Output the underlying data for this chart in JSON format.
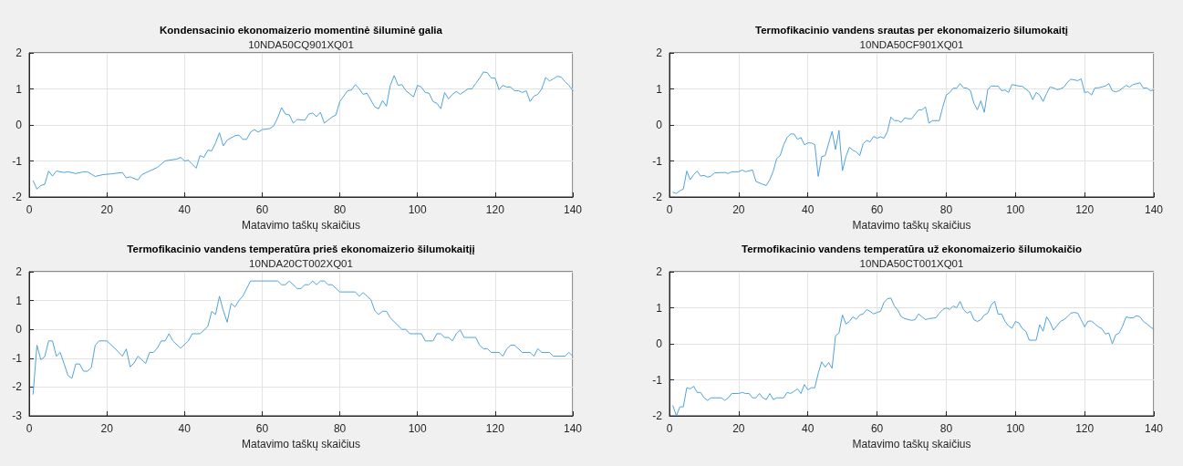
{
  "chart_data": [
    {
      "type": "line",
      "title": "Kondensacinio ekonomaizerio momentinė šiluminė galia",
      "subtitle": "10NDA50CQ901XQ01",
      "xlabel": "Matavimo taškų skaičius",
      "x": [
        1,
        2,
        3,
        4,
        5,
        6,
        7,
        9,
        10,
        12,
        14,
        15,
        17,
        19,
        21,
        24,
        25,
        26,
        28,
        29,
        31,
        33,
        35,
        36,
        38,
        39,
        40,
        41,
        43,
        44,
        45,
        46,
        47,
        48,
        49,
        50,
        51,
        53,
        54,
        55,
        56,
        57,
        58,
        59,
        60,
        62,
        63,
        64,
        65,
        66,
        67,
        68,
        69,
        71,
        72,
        73,
        74,
        75,
        76,
        78,
        79,
        80,
        82,
        83,
        84,
        85,
        86,
        87,
        89,
        90,
        91,
        92,
        93,
        94,
        95,
        96,
        97,
        99,
        100,
        101,
        102,
        103,
        104,
        105,
        106,
        107,
        108,
        109,
        110,
        111,
        113,
        114,
        115,
        116,
        117,
        118,
        119,
        120,
        121,
        122,
        123,
        124,
        125,
        126,
        127,
        128,
        129,
        130,
        131,
        132,
        133,
        134,
        135,
        136,
        137,
        138,
        139,
        140
      ],
      "series": [
        {
          "color": "#4fa3db",
          "values": [
            -1.55,
            -1.78,
            -1.68,
            -1.65,
            -1.28,
            -1.42,
            -1.28,
            -1.32,
            -1.3,
            -1.35,
            -1.3,
            -1.3,
            -1.43,
            -1.38,
            -1.36,
            -1.32,
            -1.47,
            -1.44,
            -1.53,
            -1.38,
            -1.28,
            -1.18,
            -1.0,
            -0.98,
            -0.95,
            -0.9,
            -1.0,
            -0.98,
            -1.2,
            -0.85,
            -0.9,
            -0.7,
            -0.72,
            -0.5,
            -0.22,
            -0.58,
            -0.42,
            -0.3,
            -0.28,
            -0.4,
            -0.4,
            -0.2,
            -0.13,
            -0.2,
            -0.13,
            -0.1,
            -0.02,
            0.2,
            0.48,
            0.3,
            0.28,
            0.05,
            0.15,
            0.13,
            0.3,
            0.33,
            0.23,
            0.35,
            0.05,
            0.22,
            0.28,
            0.65,
            0.95,
            0.97,
            1.12,
            1.0,
            0.85,
            0.88,
            0.5,
            0.45,
            0.68,
            0.52,
            1.1,
            1.37,
            1.1,
            1.12,
            0.95,
            0.78,
            1.1,
            1.05,
            0.9,
            0.88,
            0.65,
            0.6,
            0.45,
            0.9,
            0.72,
            0.85,
            0.93,
            0.85,
            1.0,
            1.0,
            1.15,
            1.3,
            1.47,
            1.45,
            1.3,
            1.3,
            0.98,
            1.1,
            1.05,
            1.05,
            0.95,
            0.95,
            0.9,
            0.95,
            0.65,
            0.8,
            0.85,
            1.0,
            1.32,
            1.22,
            1.28,
            1.35,
            1.33,
            1.2,
            1.1,
            0.95
          ]
        }
      ],
      "xlim": [
        0,
        140
      ],
      "xticks": [
        0,
        20,
        40,
        60,
        80,
        100,
        120,
        140
      ],
      "ylim": [
        -2,
        2
      ],
      "yticks": [
        -2,
        -1,
        0,
        1,
        2
      ],
      "grid": true
    },
    {
      "type": "line",
      "title": "Termofikacinio vandens srautas per ekonomaizerio šilumokaitį",
      "subtitle": "10NDA50CF901XQ01",
      "xlabel": "Matavimo taškų skaičius",
      "x": [
        1,
        2,
        3,
        4,
        5,
        6,
        7,
        8,
        9,
        10,
        11,
        12,
        13,
        16,
        17,
        18,
        20,
        21,
        22,
        24,
        25,
        27,
        28,
        29,
        30,
        31,
        32,
        33,
        34,
        35,
        36,
        37,
        38,
        39,
        40,
        41,
        42,
        43,
        44,
        45,
        47,
        48,
        49,
        50,
        51,
        52,
        53,
        54,
        55,
        56,
        57,
        58,
        59,
        60,
        61,
        62,
        63,
        64,
        65,
        66,
        67,
        68,
        69,
        70,
        72,
        73,
        74,
        75,
        76,
        78,
        79,
        80,
        81,
        82,
        83,
        84,
        85,
        86,
        87,
        88,
        89,
        90,
        91,
        92,
        93,
        95,
        96,
        97,
        98,
        99,
        101,
        102,
        104,
        105,
        106,
        107,
        108,
        109,
        110,
        111,
        112,
        113,
        114,
        115,
        116,
        118,
        119,
        120,
        121,
        122,
        123,
        124,
        126,
        127,
        128,
        129,
        130,
        132,
        133,
        134,
        136,
        137,
        138,
        139,
        140
      ],
      "series": [
        {
          "color": "#4fa3db",
          "values": [
            -1.87,
            -1.9,
            -1.83,
            -1.78,
            -1.28,
            -1.52,
            -1.38,
            -1.28,
            -1.42,
            -1.4,
            -1.45,
            -1.42,
            -1.33,
            -1.32,
            -1.35,
            -1.3,
            -1.3,
            -1.25,
            -1.3,
            -1.25,
            -1.57,
            -1.65,
            -1.68,
            -1.52,
            -1.28,
            -0.93,
            -0.85,
            -0.55,
            -0.35,
            -0.25,
            -0.25,
            -0.4,
            -0.35,
            -0.55,
            -0.5,
            -0.5,
            -0.55,
            -1.43,
            -0.88,
            -0.85,
            -0.18,
            -0.68,
            -0.15,
            -1.27,
            -0.88,
            -0.62,
            -0.7,
            -0.75,
            -0.85,
            -0.52,
            -0.43,
            -0.47,
            -0.32,
            -0.37,
            -0.33,
            -0.37,
            -0.18,
            0.22,
            0.12,
            0.12,
            0.07,
            0.2,
            0.17,
            0.17,
            0.42,
            0.42,
            0.5,
            0.05,
            0.12,
            0.12,
            0.5,
            0.83,
            0.9,
            1.02,
            1.02,
            1.15,
            1.03,
            1.02,
            0.95,
            0.6,
            0.42,
            0.67,
            0.35,
            0.98,
            1.08,
            1.08,
            0.95,
            0.97,
            0.9,
            1.12,
            1.08,
            1.07,
            0.92,
            0.7,
            0.9,
            0.83,
            0.65,
            0.87,
            1.05,
            1.03,
            0.98,
            1.0,
            1.05,
            1.18,
            1.27,
            1.23,
            1.28,
            0.9,
            0.92,
            0.83,
            1.03,
            1.03,
            1.08,
            1.15,
            0.95,
            0.92,
            0.95,
            1.1,
            1.05,
            1.12,
            1.17,
            1.02,
            1.03,
            0.95,
            0.97
          ]
        }
      ],
      "xlim": [
        0,
        140
      ],
      "xticks": [
        0,
        20,
        40,
        60,
        80,
        100,
        120,
        140
      ],
      "ylim": [
        -2,
        2
      ],
      "yticks": [
        -2,
        -1,
        0,
        1,
        2
      ],
      "grid": true
    },
    {
      "type": "line",
      "title": "Termofikacinio vandens temperatūra prieš ekonomaizerio šilumokaitįį",
      "subtitle": "10NDA20CT002XQ01",
      "xlabel": "Matavimo taškų skaičius",
      "x": [
        1,
        2,
        3,
        4,
        5,
        6,
        7,
        8,
        9,
        10,
        11,
        12,
        13,
        14,
        15,
        16,
        17,
        18,
        20,
        22,
        24,
        25,
        26,
        27,
        28,
        30,
        31,
        32,
        33,
        34,
        35,
        36,
        37,
        39,
        41,
        42,
        44,
        46,
        47,
        48,
        49,
        50,
        51,
        52,
        53,
        54,
        55,
        57,
        64,
        65,
        66,
        67,
        69,
        70,
        71,
        72,
        73,
        74,
        75,
        76,
        77,
        78,
        80,
        84,
        85,
        86,
        88,
        89,
        90,
        91,
        92,
        93,
        96,
        97,
        98,
        101,
        102,
        104,
        105,
        106,
        107,
        108,
        109,
        110,
        111,
        112,
        115,
        116,
        117,
        118,
        119,
        121,
        122,
        123,
        124,
        125,
        127,
        129,
        130,
        131,
        132,
        134,
        135,
        138,
        139,
        140
      ],
      "series": [
        {
          "color": "#4fa3db",
          "values": [
            -2.25,
            -0.55,
            -1.05,
            -0.95,
            -0.4,
            -0.4,
            -0.93,
            -0.8,
            -1.2,
            -1.6,
            -1.7,
            -1.2,
            -1.2,
            -1.45,
            -1.45,
            -1.33,
            -0.55,
            -0.4,
            -0.4,
            -0.65,
            -0.93,
            -0.68,
            -1.3,
            -1.17,
            -0.93,
            -1.18,
            -0.8,
            -0.8,
            -0.65,
            -0.4,
            -0.4,
            -0.15,
            -0.4,
            -0.65,
            -0.4,
            -0.15,
            -0.15,
            0.1,
            0.62,
            0.52,
            1.15,
            0.65,
            0.25,
            0.9,
            0.78,
            1.0,
            1.15,
            1.68,
            1.68,
            1.55,
            1.55,
            1.68,
            1.42,
            1.42,
            1.55,
            1.55,
            1.68,
            1.55,
            1.68,
            1.68,
            1.55,
            1.55,
            1.3,
            1.3,
            1.15,
            1.28,
            1.03,
            0.65,
            0.52,
            0.63,
            0.63,
            0.4,
            0.0,
            0.0,
            -0.15,
            -0.15,
            -0.4,
            -0.4,
            -0.15,
            -0.15,
            -0.28,
            -0.28,
            -0.4,
            -0.15,
            -0.02,
            -0.28,
            -0.28,
            -0.55,
            -0.67,
            -0.67,
            -0.8,
            -0.8,
            -0.93,
            -0.68,
            -0.55,
            -0.55,
            -0.8,
            -0.8,
            -0.93,
            -0.67,
            -0.8,
            -0.8,
            -0.93,
            -0.93,
            -0.8,
            -0.93
          ]
        }
      ],
      "xlim": [
        0,
        140
      ],
      "xticks": [
        0,
        20,
        40,
        60,
        80,
        100,
        120,
        140
      ],
      "ylim": [
        -3,
        2
      ],
      "yticks": [
        -3,
        -2,
        -1,
        0,
        1,
        2
      ],
      "grid": true
    },
    {
      "type": "line",
      "title": "Termofikacinio vandens temperatūra už ekonomaizerio šilumokaičio",
      "subtitle": "10NDA50CT001XQ01",
      "xlabel": "Matavimo taškų skaičius",
      "x": [
        1,
        2,
        3,
        4,
        5,
        6,
        7,
        8,
        9,
        10,
        11,
        12,
        15,
        16,
        17,
        18,
        20,
        21,
        22,
        23,
        24,
        25,
        26,
        27,
        28,
        29,
        30,
        31,
        33,
        34,
        35,
        36,
        37,
        38,
        39,
        40,
        41,
        42,
        43,
        44,
        45,
        46,
        47,
        48,
        49,
        50,
        51,
        52,
        53,
        54,
        55,
        56,
        57,
        58,
        59,
        60,
        61,
        62,
        63,
        64,
        65,
        66,
        67,
        68,
        70,
        71,
        72,
        73,
        74,
        75,
        77,
        78,
        79,
        80,
        81,
        82,
        83,
        84,
        85,
        86,
        87,
        88,
        89,
        90,
        91,
        92,
        93,
        94,
        95,
        96,
        97,
        98,
        99,
        100,
        101,
        102,
        103,
        104,
        106,
        107,
        108,
        109,
        110,
        111,
        112,
        113,
        114,
        115,
        116,
        117,
        118,
        119,
        120,
        121,
        122,
        123,
        124,
        125,
        126,
        127,
        128,
        129,
        130,
        131,
        132,
        133,
        134,
        135,
        136,
        137,
        138,
        139,
        140
      ],
      "series": [
        {
          "color": "#4fa3db",
          "values": [
            -1.72,
            -2.0,
            -1.75,
            -1.75,
            -1.22,
            -1.25,
            -1.18,
            -1.35,
            -1.35,
            -1.5,
            -1.57,
            -1.5,
            -1.5,
            -1.57,
            -1.5,
            -1.38,
            -1.38,
            -1.35,
            -1.38,
            -1.38,
            -1.5,
            -1.5,
            -1.38,
            -1.5,
            -1.55,
            -1.38,
            -1.55,
            -1.5,
            -1.5,
            -1.35,
            -1.38,
            -1.32,
            -1.25,
            -1.38,
            -1.13,
            -1.28,
            -1.22,
            -1.22,
            -0.82,
            -0.5,
            -0.65,
            -0.52,
            -0.68,
            0.22,
            0.3,
            0.8,
            0.55,
            0.62,
            0.75,
            0.68,
            0.8,
            0.83,
            0.95,
            0.9,
            0.83,
            0.87,
            0.9,
            1.15,
            1.25,
            1.27,
            1.05,
            0.93,
            0.75,
            0.7,
            0.65,
            0.67,
            0.83,
            0.75,
            0.67,
            0.7,
            0.72,
            0.85,
            0.95,
            1.0,
            0.95,
            1.05,
            1.0,
            1.18,
            0.95,
            0.85,
            0.9,
            0.67,
            0.62,
            0.67,
            0.8,
            0.85,
            1.08,
            1.18,
            0.82,
            0.83,
            0.62,
            0.5,
            0.43,
            0.62,
            0.58,
            0.42,
            0.35,
            0.1,
            0.1,
            0.53,
            0.35,
            0.75,
            0.6,
            0.38,
            0.5,
            0.62,
            0.67,
            0.75,
            0.85,
            0.87,
            0.85,
            0.67,
            0.47,
            0.63,
            0.63,
            0.55,
            0.47,
            0.42,
            0.27,
            0.3,
            0.0,
            0.25,
            0.3,
            0.5,
            0.75,
            0.72,
            0.72,
            0.78,
            0.75,
            0.62,
            0.55,
            0.47,
            0.4
          ]
        }
      ],
      "xlim": [
        0,
        140
      ],
      "xticks": [
        0,
        20,
        40,
        60,
        80,
        100,
        120,
        140
      ],
      "ylim": [
        -2,
        2
      ],
      "yticks": [
        -2,
        -1,
        0,
        1,
        2
      ],
      "grid": true
    }
  ]
}
